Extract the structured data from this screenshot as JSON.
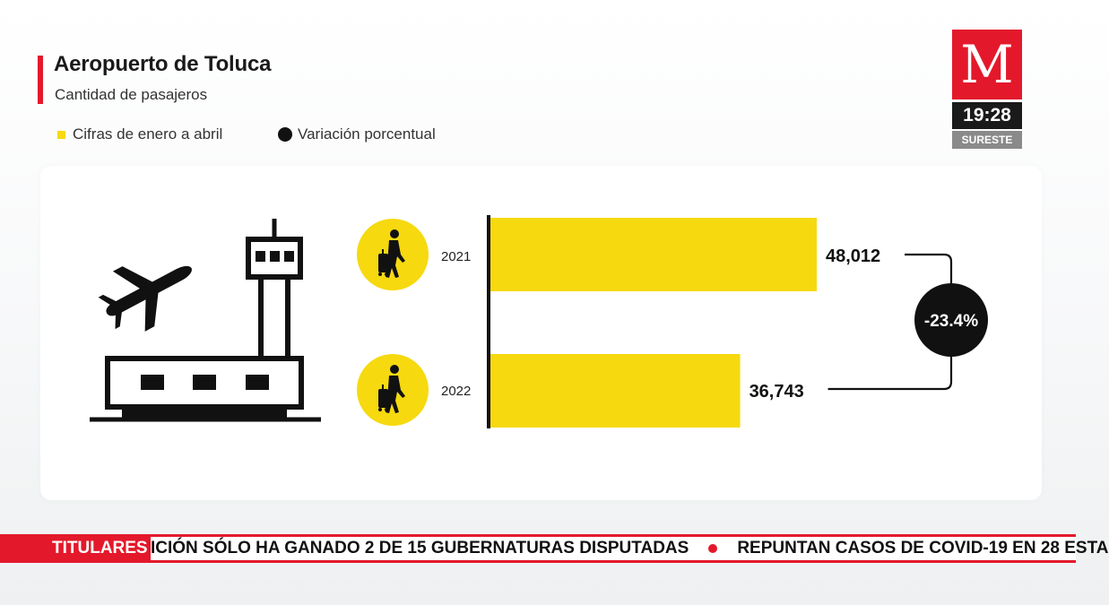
{
  "header": {
    "title": "Aeropuerto de Toluca",
    "subtitle": "Cantidad de pasajeros",
    "legend": [
      {
        "label": "Cifras de enero a abril",
        "color": "#f6d90f"
      },
      {
        "label": "Variación porcentual",
        "color": "#111111"
      }
    ]
  },
  "broadcast": {
    "logo_letter": "M",
    "time": "19:28",
    "region": "SURESTE"
  },
  "chart_data": {
    "type": "bar",
    "orientation": "horizontal",
    "categories": [
      "2021",
      "2022"
    ],
    "values": [
      48012,
      36743
    ],
    "value_labels": [
      "48,012",
      "36,743"
    ],
    "bar_color": "#f6d90f",
    "variation_label": "-23.4%"
  },
  "ticker": {
    "label": "TITULARES",
    "items": [
      "ICIÓN SÓLO HA GANADO 2 DE 15 GUBERNATURAS DISPUTADAS",
      "REPUNTAN CASOS DE COVID-19 EN 28 ESTA"
    ]
  },
  "icons": {
    "airport": "airport-tower-icon",
    "plane": "airplane-icon",
    "traveler": "traveler-luggage-icon"
  }
}
